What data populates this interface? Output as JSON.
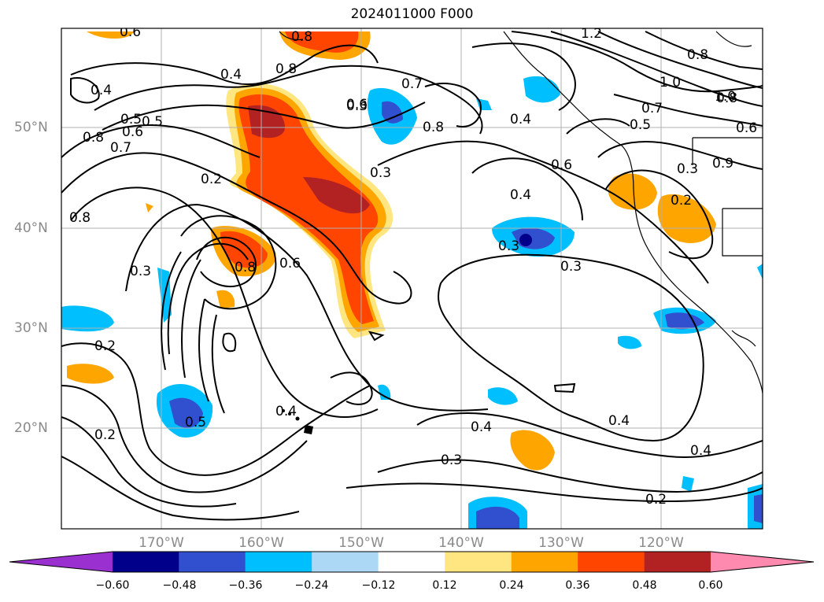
{
  "title": "2024011000 F000",
  "lat_labels": [
    "50°N",
    "40°N",
    "30°N",
    "20°N"
  ],
  "lon_labels": [
    "170°W",
    "160°W",
    "150°W",
    "140°W",
    "130°W",
    "120°W"
  ],
  "contour_labels": [
    "0.6",
    "0.4",
    "0.5",
    "0.5",
    "0.8",
    "0.6",
    "0.7",
    "0.8",
    "0.4",
    "0.2",
    "0.3",
    "0.8",
    "0.7",
    "0.6",
    "0.8",
    "0.4",
    "0.6",
    "0.3",
    "0.4",
    "0.3",
    "0.6",
    "0.8",
    "0.3",
    "0.2",
    "0.3",
    "0.2",
    "0.5",
    "0.4",
    "0.4",
    "0.3",
    "0.4",
    "0.4",
    "0.2",
    "1.0",
    "0.8",
    "1.0",
    "0.8",
    "1.2",
    "0.7",
    "0.5",
    "0.6",
    "0.3",
    "0.2",
    "0.8",
    "0.9"
  ],
  "colorbar": {
    "ticks": [
      "−0.60",
      "−0.48",
      "−0.36",
      "−0.24",
      "−0.12",
      "0.12",
      "0.24",
      "0.36",
      "0.48",
      "0.60"
    ],
    "colors": [
      "#9b30d0",
      "#00008b",
      "#3050d0",
      "#00bfff",
      "#add8f5",
      "#ffffff",
      "#ffe680",
      "#ffa500",
      "#ff4500",
      "#b22222",
      "#ff8ab0"
    ]
  }
}
